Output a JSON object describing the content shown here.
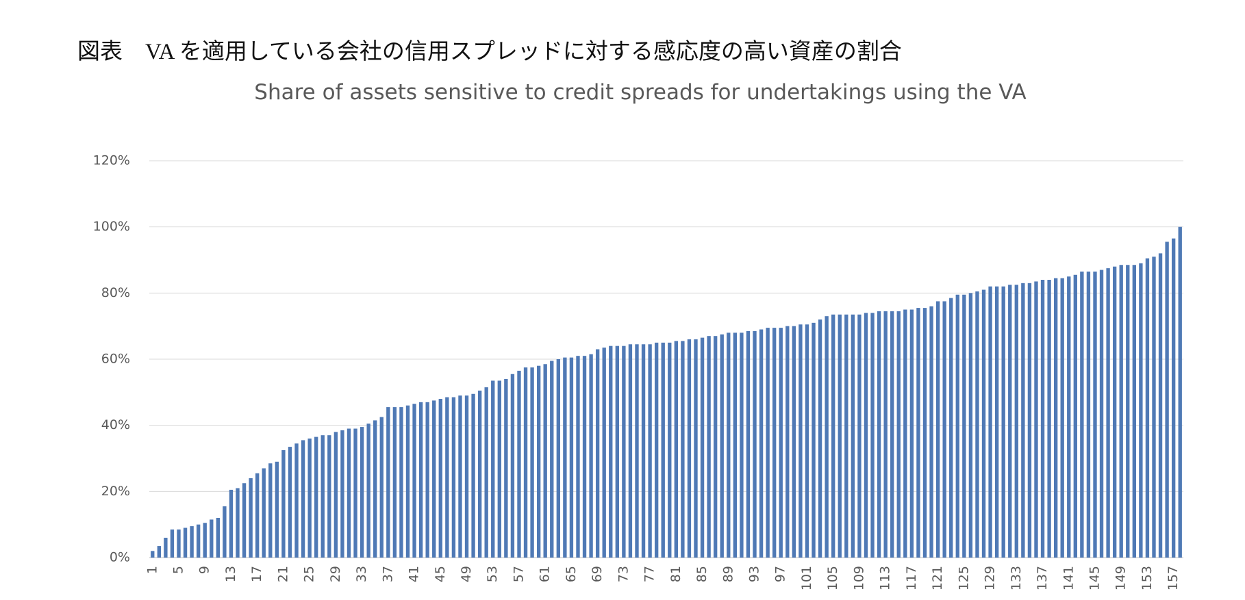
{
  "title": "図表　VA を適用している会社の信用スプレッドに対する感応度の高い資産の割合",
  "chart_data": {
    "type": "bar",
    "title": "Share of assets sensitive to credit spreads for undertakings using the VA",
    "categories": [
      "1",
      null,
      null,
      null,
      "5",
      null,
      null,
      null,
      "9",
      null,
      null,
      null,
      "13",
      null,
      null,
      null,
      "17",
      null,
      null,
      null,
      "21",
      null,
      null,
      null,
      "25",
      null,
      null,
      null,
      "29",
      null,
      null,
      null,
      "33",
      null,
      null,
      null,
      "37",
      null,
      null,
      null,
      "41",
      null,
      null,
      null,
      "45",
      null,
      null,
      null,
      "49",
      null,
      null,
      null,
      "53",
      null,
      null,
      null,
      "57",
      null,
      null,
      null,
      "61",
      null,
      null,
      null,
      "65",
      null,
      null,
      null,
      "69",
      null,
      null,
      null,
      "73",
      null,
      null,
      null,
      "77",
      null,
      null,
      null,
      "81",
      null,
      null,
      null,
      "85",
      null,
      null,
      null,
      "89",
      null,
      null,
      null,
      "93",
      null,
      null,
      null,
      "97",
      null,
      null,
      null,
      "101",
      null,
      null,
      null,
      "105",
      null,
      null,
      null,
      "109",
      null,
      null,
      null,
      "113",
      null,
      null,
      null,
      "117",
      null,
      null,
      null,
      "121",
      null,
      null,
      null,
      "125",
      null,
      null,
      null,
      "129",
      null,
      null,
      null,
      "133",
      null,
      null,
      null,
      "137",
      null,
      null,
      null,
      "141",
      null,
      null,
      null,
      "145",
      null,
      null,
      null,
      "149",
      null,
      null,
      null,
      "153",
      null,
      null,
      null,
      "157",
      null
    ],
    "values": [
      2,
      3.5,
      6,
      8.5,
      8.5,
      9,
      9.5,
      10,
      10.5,
      11.5,
      12,
      15.5,
      20.5,
      21,
      22.5,
      24,
      25.5,
      27,
      28.5,
      29,
      32.5,
      33.5,
      34.5,
      35.5,
      36,
      36.5,
      37,
      37,
      38,
      38.5,
      39,
      39,
      39.5,
      40.5,
      41.5,
      42.5,
      45.5,
      45.5,
      45.5,
      46,
      46.5,
      47,
      47,
      47.5,
      48,
      48.5,
      48.5,
      49,
      49,
      49.5,
      50.5,
      51.5,
      53.5,
      53.5,
      54,
      55.5,
      56.5,
      57.5,
      57.5,
      58,
      58.5,
      59.5,
      60,
      60.5,
      60.5,
      61,
      61,
      61.5,
      63,
      63.5,
      64,
      64,
      64,
      64.5,
      64.5,
      64.5,
      64.5,
      65,
      65,
      65,
      65.5,
      65.5,
      66,
      66,
      66.5,
      67,
      67,
      67.5,
      68,
      68,
      68,
      68.5,
      68.5,
      69,
      69.5,
      69.5,
      69.5,
      70,
      70,
      70.5,
      70.5,
      71,
      72,
      73,
      73.5,
      73.5,
      73.5,
      73.5,
      73.5,
      74,
      74,
      74.5,
      74.5,
      74.5,
      74.5,
      75,
      75,
      75.5,
      75.5,
      76,
      77.5,
      77.5,
      78.5,
      79.5,
      79.5,
      80,
      80.5,
      81,
      82,
      82,
      82,
      82.5,
      82.5,
      83,
      83,
      83.5,
      84,
      84,
      84.5,
      84.5,
      85,
      85.5,
      86.5,
      86.5,
      86.5,
      87,
      87.5,
      88,
      88.5,
      88.5,
      88.5,
      89,
      90.5,
      91,
      92,
      95.5,
      96.5,
      100
    ],
    "color": "#4f79b5",
    "ylim": [
      0,
      120
    ],
    "yticks": [
      {
        "value": 0,
        "label": "0%"
      },
      {
        "value": 20,
        "label": "20%"
      },
      {
        "value": 40,
        "label": "40%"
      },
      {
        "value": 60,
        "label": "60%"
      },
      {
        "value": 80,
        "label": "80%"
      },
      {
        "value": 100,
        "label": "100%"
      },
      {
        "value": 120,
        "label": "120%"
      }
    ],
    "grid": true
  }
}
